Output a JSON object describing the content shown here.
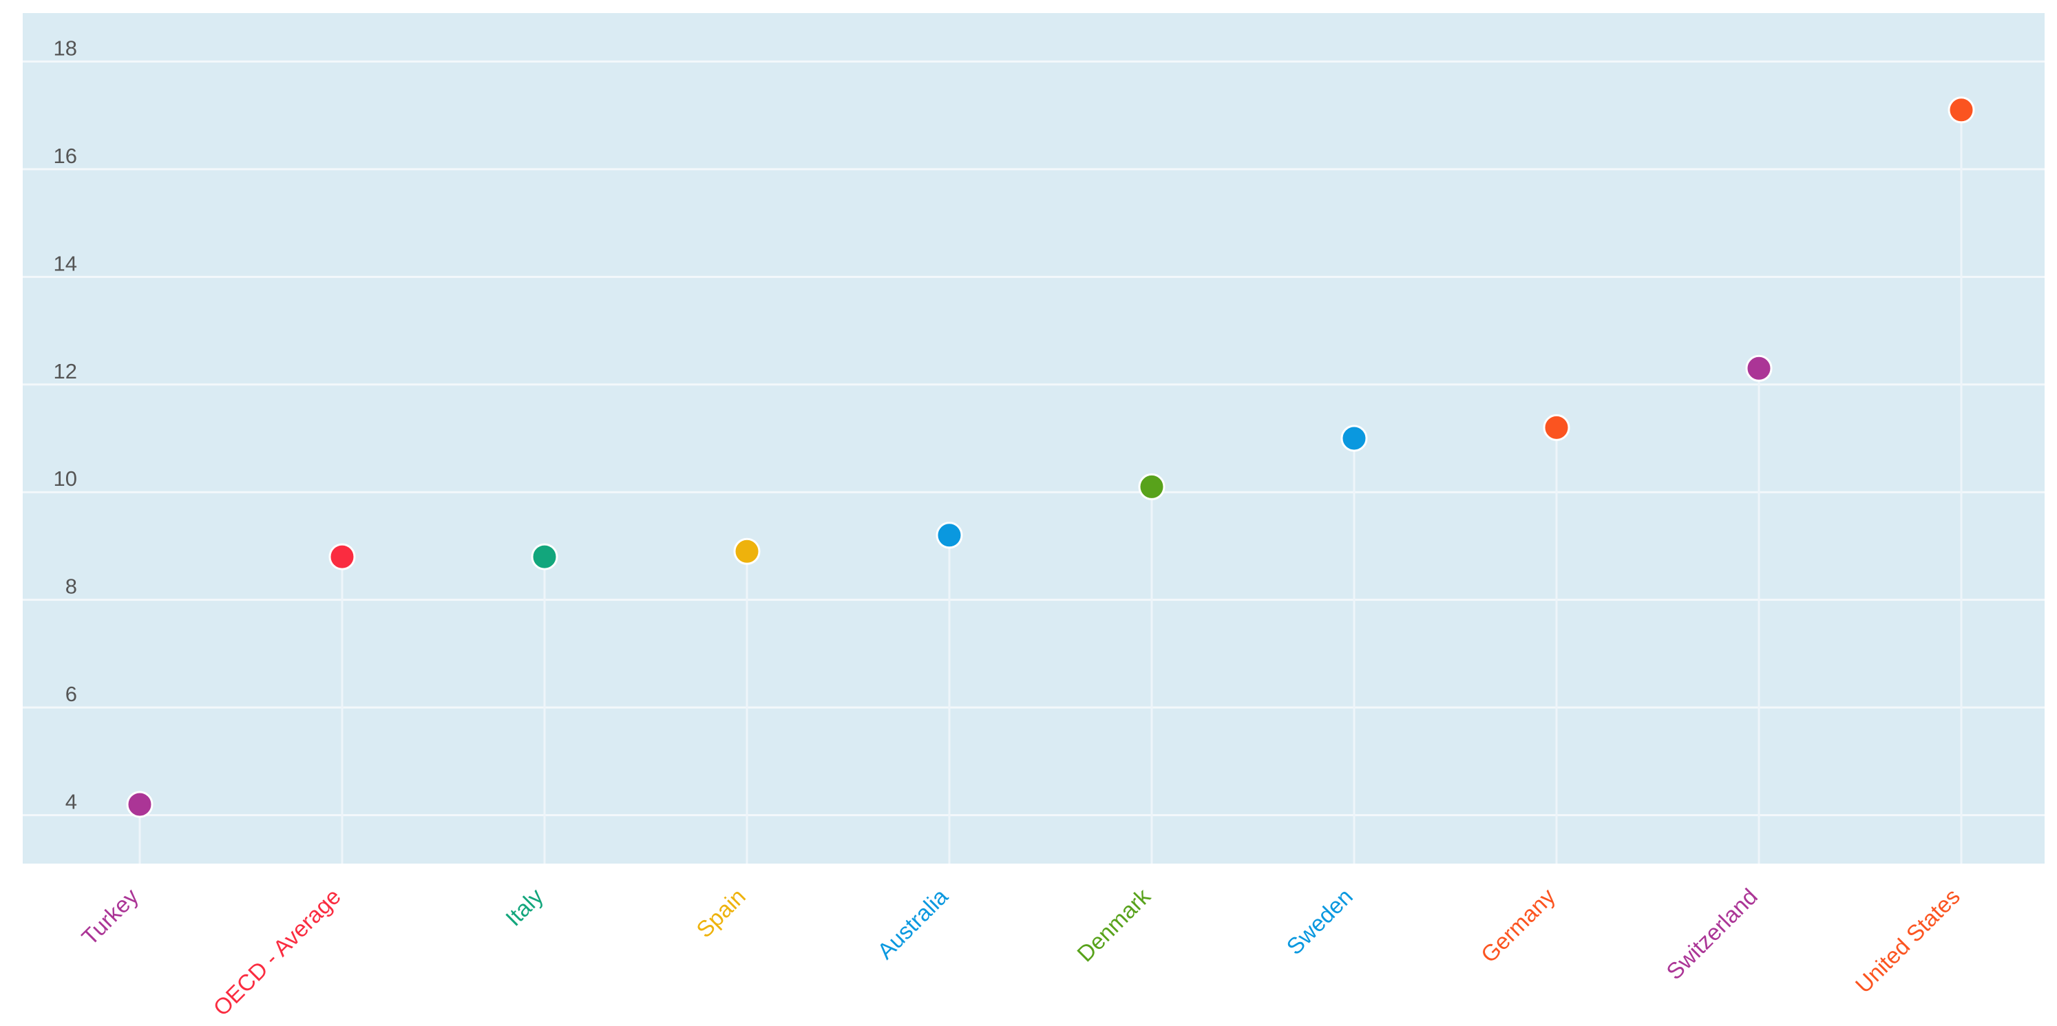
{
  "chart_data": {
    "type": "scatter",
    "style": "lollipop",
    "categories": [
      "Turkey",
      "OECD - Average",
      "Italy",
      "Spain",
      "Australia",
      "Denmark",
      "Sweden",
      "Germany",
      "Switzerland",
      "United States"
    ],
    "values": [
      4.2,
      8.8,
      8.8,
      8.9,
      9.2,
      10.1,
      11.0,
      11.2,
      12.3,
      17.1
    ],
    "colors": [
      "#ab3596",
      "#fa2c40",
      "#12a67c",
      "#eeb20c",
      "#0a98df",
      "#58a21b",
      "#0a98df",
      "#fb5420",
      "#ab3596",
      "#fb5420"
    ],
    "title": "",
    "xlabel": "",
    "ylabel": "",
    "ylim": [
      3.1,
      18.9
    ],
    "yticks": [
      "4",
      "6",
      "8",
      "10",
      "12",
      "14",
      "16",
      "18"
    ],
    "grid": true,
    "legend": "none",
    "colors_theme": {
      "plot_background": "#daebf3",
      "gridline": "#f3f8fb",
      "stem": "#eef5fa"
    }
  }
}
